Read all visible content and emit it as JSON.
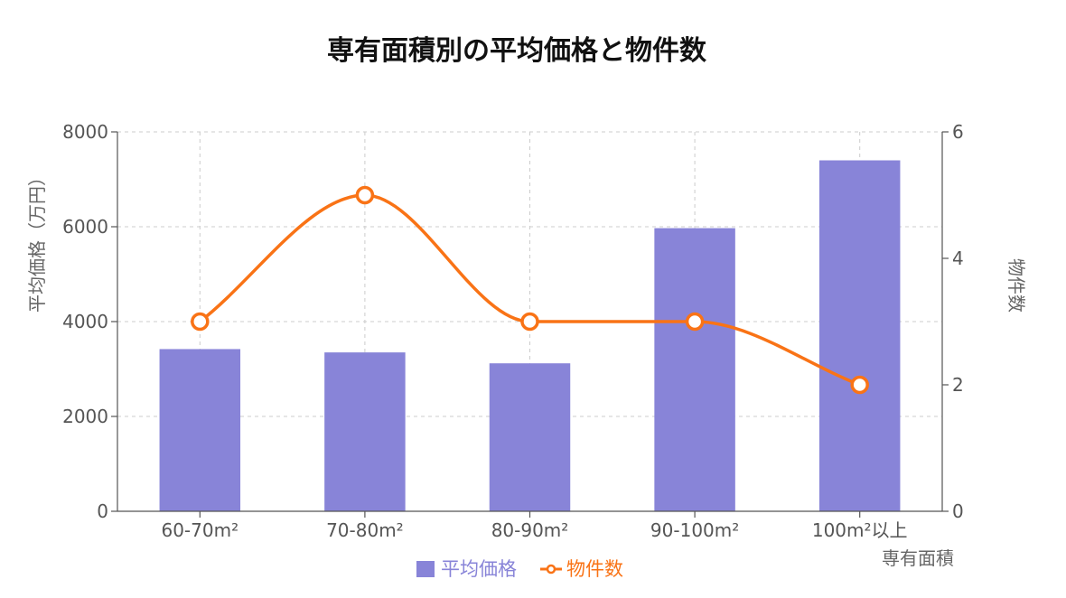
{
  "chart_data": {
    "type": "bar",
    "title": "専有面積別の平均価格と物件数",
    "categories": [
      "60-70m²",
      "70-80m²",
      "80-90m²",
      "90-100m²",
      "100m²以上"
    ],
    "xlabel": "専有面積",
    "ylabel": "平均価格（万円）",
    "y2label": "物件数",
    "ylim": [
      0,
      8000
    ],
    "y2lim": [
      0,
      6
    ],
    "yticks": [
      "0",
      "2000",
      "4000",
      "6000",
      "8000"
    ],
    "y2ticks": [
      "0",
      "2",
      "4",
      "6"
    ],
    "grid": true,
    "legend": "bottom",
    "series": [
      {
        "name": "平均価格",
        "type": "bar",
        "axis": "left",
        "color": "#8884d8",
        "values": [
          3420,
          3350,
          3120,
          5970,
          7400
        ]
      },
      {
        "name": "物件数",
        "type": "line",
        "axis": "right",
        "color": "#f97316",
        "values": [
          3,
          5,
          3,
          3,
          2
        ]
      }
    ]
  }
}
